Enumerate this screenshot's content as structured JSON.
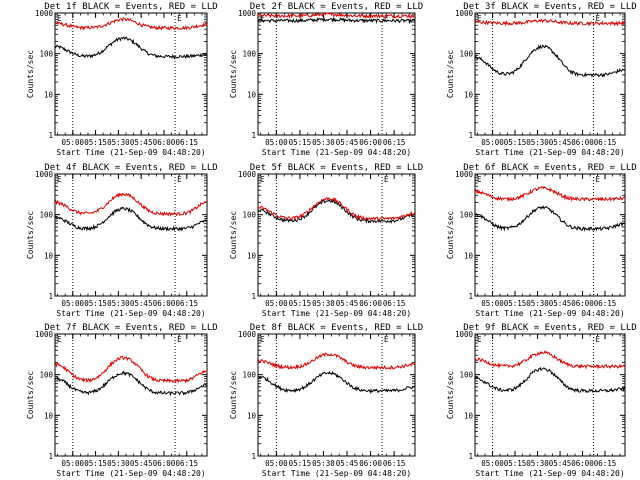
{
  "figure": {
    "ylabel": "Counts/sec",
    "xlabel": "Start Time (21-Sep-09 04:48:20)",
    "series_colors": {
      "events": "#000000",
      "lld": "#e00000"
    },
    "marker_label": "E",
    "x_tick_labels": [
      "05:00",
      "05:15",
      "05:30",
      "05:45",
      "06:00",
      "06:15"
    ],
    "y_tick_labels": [
      "1",
      "10",
      "100",
      "1000"
    ]
  },
  "chart_data": [
    {
      "type": "line",
      "title": "Det 1f BLACK = Events, RED = LLD",
      "xlabel": "Start Time (21-Sep-09 04:48:20)",
      "ylabel": "Counts/sec",
      "y_scale": "log",
      "ylim": [
        1,
        1000
      ],
      "x_unit": "minutes after 04:48:20",
      "events": {
        "base": 85,
        "peak": 240,
        "start": 150,
        "end": 95
      },
      "lld": {
        "base": 430,
        "peak": 700,
        "start": 560,
        "end": 520
      }
    },
    {
      "type": "line",
      "title": "Det 2f BLACK = Events, RED = LLD",
      "xlabel": "Start Time (21-Sep-09 04:48:20)",
      "ylabel": "Counts/sec",
      "y_scale": "log",
      "ylim": [
        1,
        1000
      ],
      "events": {
        "base": 650,
        "peak": 700,
        "start": 650,
        "end": 640
      },
      "lld": {
        "base": 850,
        "peak": 930,
        "start": 860,
        "end": 850
      }
    },
    {
      "type": "line",
      "title": "Det 3f BLACK = Events, RED = LLD",
      "xlabel": "Start Time (21-Sep-09 04:48:20)",
      "ylabel": "Counts/sec",
      "y_scale": "log",
      "ylim": [
        1,
        1000
      ],
      "events": {
        "base": 30,
        "peak": 150,
        "start": 80,
        "end": 40
      },
      "lld": {
        "base": 560,
        "peak": 650,
        "start": 600,
        "end": 560
      }
    },
    {
      "type": "line",
      "title": "Det 4f BLACK = Events, RED = LLD",
      "xlabel": "Start Time (21-Sep-09 04:48:20)",
      "ylabel": "Counts/sec",
      "y_scale": "log",
      "ylim": [
        1,
        1000
      ],
      "events": {
        "base": 45,
        "peak": 140,
        "start": 85,
        "end": 70
      },
      "lld": {
        "base": 105,
        "peak": 320,
        "start": 200,
        "end": 200
      }
    },
    {
      "type": "line",
      "title": "Det 5f BLACK = Events, RED = LLD",
      "xlabel": "Start Time (21-Sep-09 04:48:20)",
      "ylabel": "Counts/sec",
      "y_scale": "log",
      "ylim": [
        1,
        1000
      ],
      "events": {
        "base": 70,
        "peak": 220,
        "start": 130,
        "end": 100
      },
      "lld": {
        "base": 80,
        "peak": 250,
        "start": 150,
        "end": 110
      }
    },
    {
      "type": "line",
      "title": "Det 6f BLACK = Events, RED = LLD",
      "xlabel": "Start Time (21-Sep-09 04:48:20)",
      "ylabel": "Counts/sec",
      "y_scale": "log",
      "ylim": [
        1,
        1000
      ],
      "events": {
        "base": 45,
        "peak": 150,
        "start": 100,
        "end": 60
      },
      "lld": {
        "base": 240,
        "peak": 450,
        "start": 370,
        "end": 250
      }
    },
    {
      "type": "line",
      "title": "Det 7f BLACK = Events, RED = LLD",
      "xlabel": "Start Time (21-Sep-09 04:48:20)",
      "ylabel": "Counts/sec",
      "y_scale": "log",
      "ylim": [
        1,
        1000
      ],
      "events": {
        "base": 35,
        "peak": 110,
        "start": 80,
        "end": 55
      },
      "lld": {
        "base": 70,
        "peak": 260,
        "start": 180,
        "end": 120
      }
    },
    {
      "type": "line",
      "title": "Det 8f BLACK = Events, RED = LLD",
      "xlabel": "Start Time (21-Sep-09 04:48:20)",
      "ylabel": "Counts/sec",
      "y_scale": "log",
      "ylim": [
        1,
        1000
      ],
      "events": {
        "base": 40,
        "peak": 110,
        "start": 90,
        "end": 50
      },
      "lld": {
        "base": 150,
        "peak": 320,
        "start": 220,
        "end": 180
      }
    },
    {
      "type": "line",
      "title": "Det 9f BLACK = Events, RED = LLD",
      "xlabel": "Start Time (21-Sep-09 04:48:20)",
      "ylabel": "Counts/sec",
      "y_scale": "log",
      "ylim": [
        1,
        1000
      ],
      "events": {
        "base": 40,
        "peak": 140,
        "start": 80,
        "end": 45
      },
      "lld": {
        "base": 160,
        "peak": 350,
        "start": 240,
        "end": 160
      }
    }
  ]
}
